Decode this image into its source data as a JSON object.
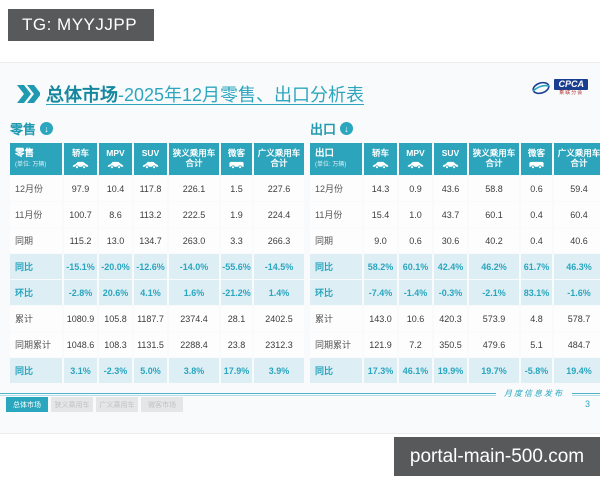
{
  "overlay": {
    "tg_label": "TG: MYYJJPP",
    "watermark": "portal-main-500.com"
  },
  "header": {
    "title_emphasis": "总体市场",
    "title_rest": "-2025年12月零售、出口分析表",
    "logo_text": "CPCA",
    "logo_subtext": "乘联分会"
  },
  "footer": {
    "note": "月度信息发布",
    "page_number": "3",
    "tabs": [
      {
        "label": "总体市场",
        "active": true
      },
      {
        "label": "狭义乘用车",
        "active": false
      },
      {
        "label": "广义乘用车",
        "active": false
      },
      {
        "label": "微客市场",
        "active": false
      }
    ]
  },
  "colors": {
    "accent_teal": "#2BA4BC",
    "highlight_row_bg": "#DDEEF5",
    "overlay_box_bg": "#58595B",
    "logo_blue": "#1A3E8F"
  },
  "tables": [
    {
      "name": "零售",
      "unit": "(单位: 万辆)",
      "columns": [
        {
          "label": "轿车",
          "icon": "car"
        },
        {
          "label": "MPV",
          "icon": "car"
        },
        {
          "label": "SUV",
          "icon": "car"
        },
        {
          "label": "狭义乘用车\n合计",
          "icon": null
        },
        {
          "label": "微客",
          "icon": "van"
        },
        {
          "label": "广义乘用车\n合计",
          "icon": null
        }
      ],
      "rows": [
        {
          "label": "12月份",
          "highlight": false,
          "values": [
            "97.9",
            "10.4",
            "117.8",
            "226.1",
            "1.5",
            "227.6"
          ]
        },
        {
          "label": "11月份",
          "highlight": false,
          "values": [
            "100.7",
            "8.6",
            "113.2",
            "222.5",
            "1.9",
            "224.4"
          ]
        },
        {
          "label": "同期",
          "highlight": false,
          "values": [
            "115.2",
            "13.0",
            "134.7",
            "263.0",
            "3.3",
            "266.3"
          ]
        },
        {
          "label": "同比",
          "highlight": true,
          "values": [
            "-15.1%",
            "-20.0%",
            "-12.6%",
            "-14.0%",
            "-55.6%",
            "-14.5%"
          ]
        },
        {
          "label": "环比",
          "highlight": true,
          "values": [
            "-2.8%",
            "20.6%",
            "4.1%",
            "1.6%",
            "-21.2%",
            "1.4%"
          ]
        },
        {
          "label": "累计",
          "highlight": false,
          "values": [
            "1080.9",
            "105.8",
            "1187.7",
            "2374.4",
            "28.1",
            "2402.5"
          ]
        },
        {
          "label": "同期累计",
          "highlight": false,
          "values": [
            "1048.6",
            "108.3",
            "1131.5",
            "2288.4",
            "23.8",
            "2312.3"
          ]
        },
        {
          "label": "同比",
          "highlight": true,
          "values": [
            "3.1%",
            "-2.3%",
            "5.0%",
            "3.8%",
            "17.9%",
            "3.9%"
          ]
        }
      ]
    },
    {
      "name": "出口",
      "unit": "(单位: 万辆)",
      "columns": [
        {
          "label": "轿车",
          "icon": "car"
        },
        {
          "label": "MPV",
          "icon": "car"
        },
        {
          "label": "SUV",
          "icon": "car"
        },
        {
          "label": "狭义乘用车\n合计",
          "icon": null
        },
        {
          "label": "微客",
          "icon": "van"
        },
        {
          "label": "广义乘用车\n合计",
          "icon": null
        }
      ],
      "rows": [
        {
          "label": "12月份",
          "highlight": false,
          "values": [
            "14.3",
            "0.9",
            "43.6",
            "58.8",
            "0.6",
            "59.4"
          ]
        },
        {
          "label": "11月份",
          "highlight": false,
          "values": [
            "15.4",
            "1.0",
            "43.7",
            "60.1",
            "0.4",
            "60.4"
          ]
        },
        {
          "label": "同期",
          "highlight": false,
          "values": [
            "9.0",
            "0.6",
            "30.6",
            "40.2",
            "0.4",
            "40.6"
          ]
        },
        {
          "label": "同比",
          "highlight": true,
          "values": [
            "58.2%",
            "60.1%",
            "42.4%",
            "46.2%",
            "61.7%",
            "46.3%"
          ]
        },
        {
          "label": "环比",
          "highlight": true,
          "values": [
            "-7.4%",
            "-1.4%",
            "-0.3%",
            "-2.1%",
            "83.1%",
            "-1.6%"
          ]
        },
        {
          "label": "累计",
          "highlight": false,
          "values": [
            "143.0",
            "10.6",
            "420.3",
            "573.9",
            "4.8",
            "578.7"
          ]
        },
        {
          "label": "同期累计",
          "highlight": false,
          "values": [
            "121.9",
            "7.2",
            "350.5",
            "479.6",
            "5.1",
            "484.7"
          ]
        },
        {
          "label": "同比",
          "highlight": true,
          "values": [
            "17.3%",
            "46.1%",
            "19.9%",
            "19.7%",
            "-5.8%",
            "19.4%"
          ]
        }
      ]
    }
  ]
}
